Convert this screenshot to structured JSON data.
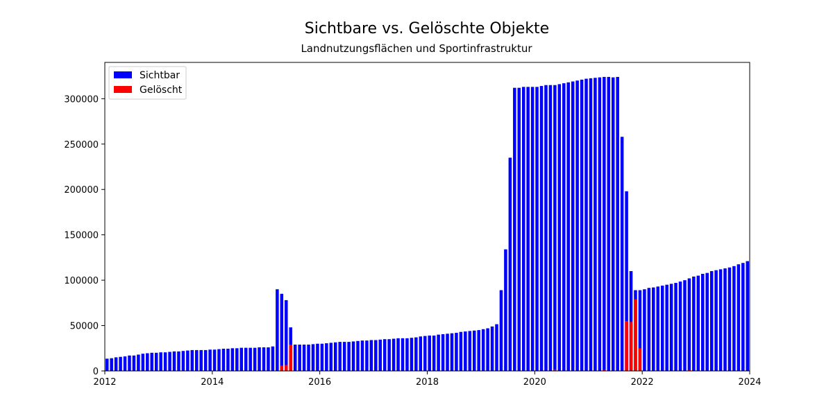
{
  "chart_data": {
    "type": "bar",
    "title": "Sichtbare vs. Gelöschte Objekte",
    "subtitle": "Landnutzungsflächen und Sportinfrastruktur",
    "xlabel": "",
    "ylabel": "",
    "xlim": [
      "2012-01",
      "2024-01"
    ],
    "ylim": [
      0,
      340000
    ],
    "x_ticks": [
      "2012",
      "2014",
      "2016",
      "2018",
      "2020",
      "2022",
      "2024"
    ],
    "y_ticks": [
      0,
      50000,
      100000,
      150000,
      200000,
      250000,
      300000
    ],
    "y_tick_labels": [
      "0",
      "50000",
      "100000",
      "150000",
      "200000",
      "250000",
      "300000"
    ],
    "grid": false,
    "legend": "top-left",
    "colors": {
      "sichtbar": "#0000ff",
      "geloescht": "#ff0000"
    },
    "x": [
      "2012-01",
      "2012-02",
      "2012-03",
      "2012-04",
      "2012-05",
      "2012-06",
      "2012-07",
      "2012-08",
      "2012-09",
      "2012-10",
      "2012-11",
      "2012-12",
      "2013-01",
      "2013-02",
      "2013-03",
      "2013-04",
      "2013-05",
      "2013-06",
      "2013-07",
      "2013-08",
      "2013-09",
      "2013-10",
      "2013-11",
      "2013-12",
      "2014-01",
      "2014-02",
      "2014-03",
      "2014-04",
      "2014-05",
      "2014-06",
      "2014-07",
      "2014-08",
      "2014-09",
      "2014-10",
      "2014-11",
      "2014-12",
      "2015-01",
      "2015-02",
      "2015-03",
      "2015-04",
      "2015-05",
      "2015-06",
      "2015-07",
      "2015-08",
      "2015-09",
      "2015-10",
      "2015-11",
      "2015-12",
      "2016-01",
      "2016-02",
      "2016-03",
      "2016-04",
      "2016-05",
      "2016-06",
      "2016-07",
      "2016-08",
      "2016-09",
      "2016-10",
      "2016-11",
      "2016-12",
      "2017-01",
      "2017-02",
      "2017-03",
      "2017-04",
      "2017-05",
      "2017-06",
      "2017-07",
      "2017-08",
      "2017-09",
      "2017-10",
      "2017-11",
      "2017-12",
      "2018-01",
      "2018-02",
      "2018-03",
      "2018-04",
      "2018-05",
      "2018-06",
      "2018-07",
      "2018-08",
      "2018-09",
      "2018-10",
      "2018-11",
      "2018-12",
      "2019-01",
      "2019-02",
      "2019-03",
      "2019-04",
      "2019-05",
      "2019-06",
      "2019-07",
      "2019-08",
      "2019-09",
      "2019-10",
      "2019-11",
      "2019-12",
      "2020-01",
      "2020-02",
      "2020-03",
      "2020-04",
      "2020-05",
      "2020-06",
      "2020-07",
      "2020-08",
      "2020-09",
      "2020-10",
      "2020-11",
      "2020-12",
      "2021-01",
      "2021-02",
      "2021-03",
      "2021-04",
      "2021-05",
      "2021-06",
      "2021-07",
      "2021-08",
      "2021-09",
      "2021-10",
      "2021-11",
      "2021-12",
      "2022-01",
      "2022-02",
      "2022-03",
      "2022-04",
      "2022-05",
      "2022-06",
      "2022-07",
      "2022-08",
      "2022-09",
      "2022-10",
      "2022-11",
      "2022-12",
      "2023-01",
      "2023-02",
      "2023-03",
      "2023-04",
      "2023-05",
      "2023-06",
      "2023-07",
      "2023-08",
      "2023-09",
      "2023-10",
      "2023-11",
      "2023-12"
    ],
    "series": [
      {
        "name": "Sichtbar",
        "values": [
          13500,
          14000,
          15000,
          15500,
          16000,
          17000,
          17000,
          18000,
          19000,
          19500,
          20000,
          20000,
          20500,
          20500,
          21000,
          21500,
          21500,
          22000,
          22500,
          23000,
          23000,
          23000,
          23000,
          23500,
          23500,
          24000,
          24500,
          24500,
          25000,
          25000,
          25500,
          25500,
          25500,
          25500,
          26000,
          26000,
          26000,
          27000,
          90000,
          85000,
          78000,
          48000,
          29000,
          29000,
          29000,
          29000,
          29500,
          30000,
          30000,
          30500,
          31000,
          31500,
          32000,
          32000,
          32000,
          32500,
          33000,
          33500,
          33500,
          34000,
          34000,
          34500,
          35000,
          35000,
          35500,
          36000,
          36000,
          36000,
          36500,
          37000,
          38000,
          38500,
          39000,
          39000,
          40000,
          40500,
          41000,
          41500,
          42000,
          43000,
          43500,
          44000,
          44500,
          45000,
          46000,
          47000,
          49000,
          51500,
          89000,
          134000,
          235000,
          312000,
          312000,
          313000,
          313000,
          313000,
          313000,
          314000,
          315000,
          315000,
          315000,
          316000,
          317000,
          318000,
          319000,
          320000,
          321000,
          322000,
          322500,
          323000,
          323500,
          324000,
          324000,
          323500,
          324000,
          258000,
          198000,
          110000,
          89000,
          89000,
          90000,
          91500,
          92000,
          93000,
          94000,
          95000,
          96000,
          97000,
          98500,
          100000,
          102000,
          104000,
          105000,
          107000,
          108000,
          110000,
          111000,
          112000,
          113000,
          114000,
          115500,
          117500,
          119000,
          121000
        ]
      },
      {
        "name": "Gelöscht",
        "values": [
          0,
          0,
          0,
          0,
          0,
          0,
          0,
          0,
          0,
          0,
          0,
          0,
          0,
          0,
          0,
          0,
          0,
          0,
          0,
          0,
          0,
          0,
          0,
          0,
          0,
          0,
          0,
          0,
          0,
          0,
          0,
          0,
          0,
          0,
          0,
          0,
          0,
          0,
          0,
          6000,
          6500,
          29000,
          0,
          0,
          0,
          0,
          0,
          0,
          0,
          0,
          0,
          0,
          0,
          0,
          0,
          0,
          0,
          0,
          0,
          0,
          0,
          0,
          0,
          0,
          0,
          0,
          0,
          0,
          0,
          0,
          0,
          0,
          0,
          0,
          0,
          0,
          0,
          0,
          0,
          0,
          0,
          0,
          0,
          0,
          0,
          0,
          0,
          0,
          0,
          0,
          0,
          0,
          0,
          0,
          0,
          0,
          0,
          0,
          0,
          0,
          1500,
          0,
          0,
          0,
          0,
          0,
          0,
          0,
          0,
          0,
          0,
          1200,
          0,
          0,
          0,
          0,
          55000,
          54000,
          79000,
          25000,
          0,
          0,
          0,
          0,
          0,
          0,
          0,
          0,
          0,
          0,
          1000,
          0,
          0,
          0,
          0,
          0,
          0,
          0,
          0,
          0,
          0,
          0,
          0,
          0
        ]
      }
    ]
  }
}
